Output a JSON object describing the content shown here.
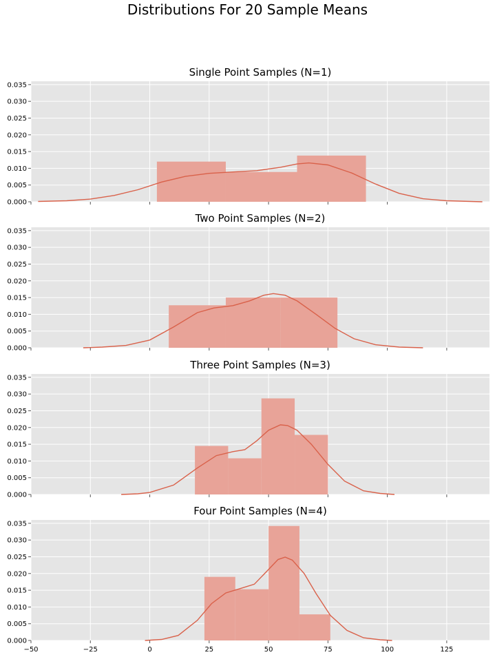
{
  "figure": {
    "suptitle": "Distributions For 20 Sample Means"
  },
  "style": {
    "panel_bg": "#E5E5E5",
    "grid_color": "#FFFFFF",
    "bar_color": "#E8A398",
    "kde_color": "#D9614A",
    "tick_color": "#555555"
  },
  "chart_data": [
    {
      "type": "bar",
      "title": "Single Point Samples (N=1)",
      "xlim": [
        -50,
        143
      ],
      "ylim": [
        0,
        0.036
      ],
      "yticks": [
        0.0,
        0.005,
        0.01,
        0.015,
        0.02,
        0.025,
        0.03,
        0.035
      ],
      "ytick_labels": [
        "0.000",
        "0.005",
        "0.010",
        "0.015",
        "0.020",
        "0.025",
        "0.030",
        "0.035"
      ],
      "xticks": [
        -50,
        -25,
        0,
        25,
        50,
        75,
        100,
        125
      ],
      "xtick_labels": [],
      "grid": true,
      "bins": [
        {
          "x0": 3,
          "x1": 32,
          "y": 0.012
        },
        {
          "x0": 32,
          "x1": 62,
          "y": 0.0089
        },
        {
          "x0": 62,
          "x1": 91,
          "y": 0.0138
        }
      ],
      "kde": {
        "x": [
          -47,
          -35,
          -25,
          -15,
          -5,
          5,
          15,
          25,
          35,
          45,
          55,
          62,
          67,
          75,
          85,
          95,
          105,
          115,
          125,
          135,
          140
        ],
        "y": [
          0.0001,
          0.0003,
          0.0008,
          0.0019,
          0.0036,
          0.0059,
          0.0076,
          0.0085,
          0.0089,
          0.0093,
          0.0103,
          0.0113,
          0.0116,
          0.011,
          0.0086,
          0.0053,
          0.0025,
          0.0009,
          0.0003,
          0.0001,
          0.0
        ]
      }
    },
    {
      "type": "bar",
      "title": "Two Point Samples (N=2)",
      "xlim": [
        -50,
        143
      ],
      "ylim": [
        0,
        0.036
      ],
      "yticks": [
        0.0,
        0.005,
        0.01,
        0.015,
        0.02,
        0.025,
        0.03,
        0.035
      ],
      "ytick_labels": [
        "0.000",
        "0.005",
        "0.010",
        "0.015",
        "0.020",
        "0.025",
        "0.030",
        "0.035"
      ],
      "xticks": [
        -50,
        -25,
        0,
        25,
        50,
        75,
        100,
        125
      ],
      "xtick_labels": [],
      "grid": true,
      "bins": [
        {
          "x0": 8,
          "x1": 32,
          "y": 0.0127
        },
        {
          "x0": 32,
          "x1": 55,
          "y": 0.015
        },
        {
          "x0": 55,
          "x1": 79,
          "y": 0.015
        }
      ],
      "kde": {
        "x": [
          -28,
          -20,
          -10,
          0,
          10,
          20,
          27,
          35,
          42,
          48,
          52,
          57,
          62,
          70,
          78,
          86,
          95,
          105,
          115
        ],
        "y": [
          0.0,
          0.0002,
          0.0007,
          0.0023,
          0.0062,
          0.0105,
          0.0119,
          0.0126,
          0.014,
          0.0157,
          0.0162,
          0.0157,
          0.014,
          0.01,
          0.0058,
          0.0027,
          0.0009,
          0.0002,
          0.0
        ]
      }
    },
    {
      "type": "bar",
      "title": "Three Point Samples (N=3)",
      "xlim": [
        -50,
        143
      ],
      "ylim": [
        0,
        0.036
      ],
      "yticks": [
        0.0,
        0.005,
        0.01,
        0.015,
        0.02,
        0.025,
        0.03,
        0.035
      ],
      "ytick_labels": [
        "0.000",
        "0.005",
        "0.010",
        "0.015",
        "0.020",
        "0.025",
        "0.030",
        "0.035"
      ],
      "xticks": [
        -50,
        -25,
        0,
        25,
        50,
        75,
        100,
        125
      ],
      "xtick_labels": [],
      "grid": true,
      "bins": [
        {
          "x0": 19,
          "x1": 33,
          "y": 0.0145
        },
        {
          "x0": 33,
          "x1": 47,
          "y": 0.0108
        },
        {
          "x0": 47,
          "x1": 61,
          "y": 0.0287
        },
        {
          "x0": 61,
          "x1": 75,
          "y": 0.0178
        }
      ],
      "kde": {
        "x": [
          -12,
          -5,
          0,
          10,
          20,
          28,
          35,
          40,
          45,
          50,
          55,
          58,
          62,
          68,
          75,
          82,
          90,
          97,
          103
        ],
        "y": [
          0.0,
          0.0002,
          0.0006,
          0.0028,
          0.0079,
          0.0116,
          0.0128,
          0.0134,
          0.016,
          0.0192,
          0.0208,
          0.0206,
          0.0192,
          0.015,
          0.009,
          0.004,
          0.0011,
          0.0003,
          0.0
        ]
      }
    },
    {
      "type": "bar",
      "title": "Four Point Samples (N=4)",
      "xlim": [
        -50,
        143
      ],
      "ylim": [
        0,
        0.036
      ],
      "yticks": [
        0.0,
        0.005,
        0.01,
        0.015,
        0.02,
        0.025,
        0.03,
        0.035
      ],
      "ytick_labels": [
        "0.000",
        "0.005",
        "0.010",
        "0.015",
        "0.020",
        "0.025",
        "0.030",
        "0.035"
      ],
      "xticks": [
        -50,
        -25,
        0,
        25,
        50,
        75,
        100,
        125
      ],
      "xtick_labels": [
        "−50",
        "−25",
        "0",
        "25",
        "50",
        "75",
        "100",
        "125"
      ],
      "grid": true,
      "bins": [
        {
          "x0": 23,
          "x1": 36,
          "y": 0.019
        },
        {
          "x0": 36,
          "x1": 50,
          "y": 0.0153
        },
        {
          "x0": 50,
          "x1": 63,
          "y": 0.0342
        },
        {
          "x0": 63,
          "x1": 76,
          "y": 0.0078
        }
      ],
      "kde": {
        "x": [
          -2,
          5,
          12,
          20,
          26,
          32,
          38,
          44,
          50,
          54,
          57,
          60,
          65,
          70,
          76,
          83,
          90,
          97,
          102
        ],
        "y": [
          0.0,
          0.0003,
          0.0015,
          0.006,
          0.011,
          0.0142,
          0.0155,
          0.0168,
          0.0212,
          0.0242,
          0.0249,
          0.024,
          0.02,
          0.014,
          0.0075,
          0.003,
          0.0008,
          0.0002,
          0.0
        ]
      }
    }
  ]
}
